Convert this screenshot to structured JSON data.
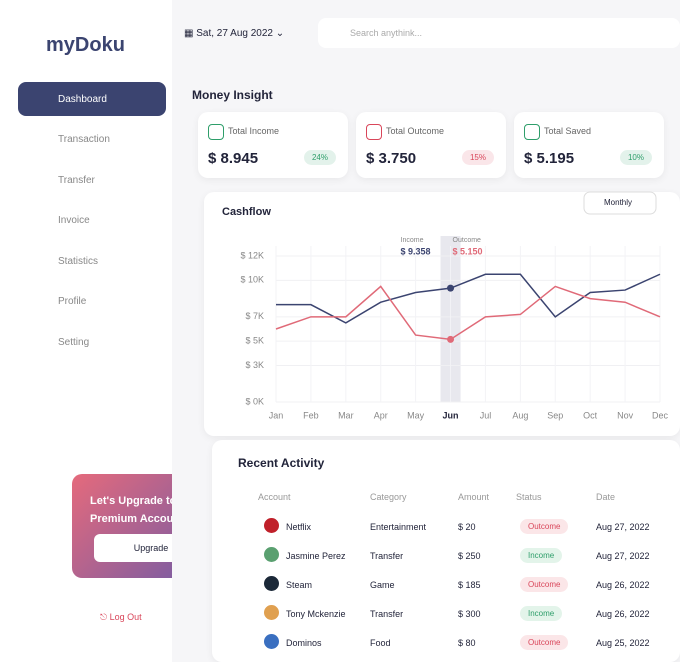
{
  "header": {
    "logo": "myDoku",
    "date": "Sat, 27 Aug 2022",
    "search": "Search anythink..."
  },
  "sidebar": {
    "nav": [
      "Dashboard",
      "Transaction",
      "Transfer",
      "Invoice",
      "Statistics",
      "Profile",
      "Setting"
    ],
    "upgrade": {
      "title": "Let's Upgrade to Premium Account",
      "button": "Upgrade"
    },
    "logout": "Log Out"
  },
  "insight": {
    "title": "Money Insight",
    "cards": [
      {
        "label": "Total Income",
        "amount": "$ 8.945",
        "change": "24%",
        "color": "#2e9e6a"
      },
      {
        "label": "Total Outcome",
        "amount": "$ 3.750",
        "change": "15%",
        "color": "#d9465a"
      },
      {
        "label": "Total Saved",
        "amount": "$ 5.195",
        "change": "10%",
        "color": "#2e9e6a"
      }
    ]
  },
  "chart_data": {
    "type": "line",
    "title": "Cashflow",
    "period": "Monthly",
    "categories": [
      "Jan",
      "Feb",
      "Mar",
      "Apr",
      "May",
      "Jun",
      "Jul",
      "Aug",
      "Sep",
      "Oct",
      "Nov",
      "Dec"
    ],
    "series": [
      {
        "name": "Income",
        "color": "#3b4470",
        "values": [
          8000,
          8000,
          6500,
          8200,
          9000,
          9358,
          10500,
          10500,
          7000,
          9000,
          9200,
          10500
        ]
      },
      {
        "name": "Outcome",
        "color": "#e06a78",
        "values": [
          6000,
          7000,
          7000,
          9500,
          5500,
          5150,
          7000,
          7200,
          9500,
          8500,
          8200,
          7000
        ]
      }
    ],
    "selected": "Jun",
    "tooltip": [
      "$ 9.358",
      "$ 5.150"
    ],
    "ylim": [
      0,
      12000
    ],
    "yticks": [
      {
        "value": 0,
        "label": "$ 0K"
      },
      {
        "value": 3000,
        "label": "$ 3K"
      },
      {
        "value": 5000,
        "label": "$ 5K"
      },
      {
        "value": 7000,
        "label": "$ 7K"
      },
      {
        "value": 10000,
        "label": "$ 10K"
      },
      {
        "value": 12000,
        "label": "$ 12K"
      }
    ],
    "grid": true
  },
  "activity": {
    "title": "Recent Activity",
    "columns": [
      "Account",
      "Category",
      "Amount",
      "Status",
      "Date"
    ],
    "rows": [
      [
        "Netflix",
        "Entertainment",
        "$ 20",
        "Outcome",
        "Aug 27, 2022"
      ],
      [
        "Jasmine Perez",
        "Transfer",
        "$ 250",
        "Income",
        "Aug 27, 2022"
      ],
      [
        "Steam",
        "Game",
        "$ 185",
        "Outcome",
        "Aug 26, 2022"
      ],
      [
        "Tony Mckenzie",
        "Transfer",
        "$ 300",
        "Income",
        "Aug 26, 2022"
      ],
      [
        "Dominos",
        "Food",
        "$ 80",
        "Outcome",
        "Aug 25, 2022"
      ]
    ]
  }
}
